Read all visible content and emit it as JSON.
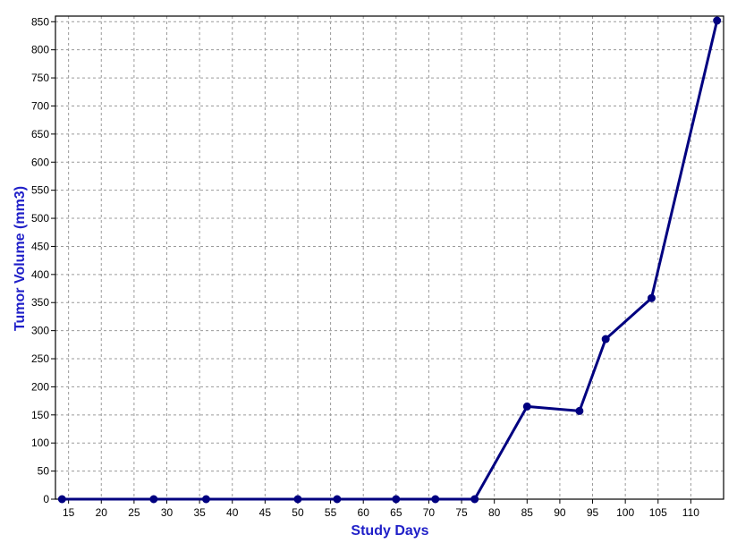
{
  "chart_data": {
    "type": "line",
    "title": "",
    "xlabel": "Study Days",
    "ylabel": "Tumor Volume (mm3)",
    "xlim": [
      13,
      115
    ],
    "ylim": [
      0,
      860
    ],
    "xticks": [
      15,
      20,
      25,
      30,
      35,
      40,
      45,
      50,
      55,
      60,
      65,
      70,
      75,
      80,
      85,
      90,
      95,
      100,
      105,
      110
    ],
    "yticks": [
      0,
      50,
      100,
      150,
      200,
      250,
      300,
      350,
      400,
      450,
      500,
      550,
      600,
      650,
      700,
      750,
      800,
      850
    ],
    "grid": true,
    "legend": "none",
    "series": [
      {
        "color": "#000080",
        "points": [
          {
            "x": 14,
            "y": 0
          },
          {
            "x": 28,
            "y": 0
          },
          {
            "x": 36,
            "y": 0
          },
          {
            "x": 50,
            "y": 0
          },
          {
            "x": 56,
            "y": 0
          },
          {
            "x": 65,
            "y": 0
          },
          {
            "x": 71,
            "y": 0
          },
          {
            "x": 77,
            "y": 0
          },
          {
            "x": 85,
            "y": 165
          },
          {
            "x": 93,
            "y": 157
          },
          {
            "x": 97,
            "y": 285
          },
          {
            "x": 104,
            "y": 358
          },
          {
            "x": 114,
            "y": 852
          }
        ]
      }
    ],
    "colors": {
      "axis_title": "#1f1fc8",
      "grid": "#9a9a9a",
      "line": "#000080"
    }
  }
}
